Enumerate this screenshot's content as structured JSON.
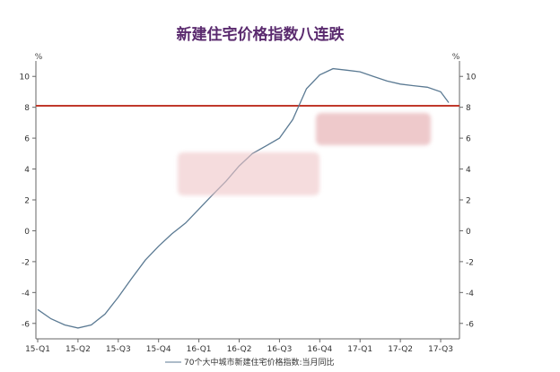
{
  "chart_data": {
    "type": "line",
    "title": "新建住宅价格指数八连跌",
    "unit_left": "%",
    "unit_right": "%",
    "ylim": [
      -7,
      11
    ],
    "yticks": [
      -6,
      -4,
      -2,
      0,
      2,
      4,
      6,
      8,
      10
    ],
    "xlim": [
      0,
      10.2
    ],
    "xticks": [
      {
        "x": 0,
        "label": "15-Q1"
      },
      {
        "x": 1,
        "label": "15-Q2"
      },
      {
        "x": 2,
        "label": "15-Q3"
      },
      {
        "x": 3,
        "label": "15-Q4"
      },
      {
        "x": 4,
        "label": "16-Q1"
      },
      {
        "x": 5,
        "label": "16-Q2"
      },
      {
        "x": 6,
        "label": "16-Q3"
      },
      {
        "x": 7,
        "label": "16-Q4"
      },
      {
        "x": 8,
        "label": "17-Q1"
      },
      {
        "x": 9,
        "label": "17-Q2"
      },
      {
        "x": 10,
        "label": "17-Q3"
      }
    ],
    "reference_line": {
      "y": 8.1,
      "color": "#c0392b"
    },
    "series": [
      {
        "name": "70个大中城市新建住宅价格指数:当月同比",
        "color": "#5b7a93",
        "x": [
          0,
          0.33,
          0.67,
          1.0,
          1.33,
          1.67,
          2.0,
          2.33,
          2.67,
          3.0,
          3.33,
          3.67,
          4.0,
          4.33,
          4.67,
          5.0,
          5.33,
          5.67,
          6.0,
          6.33,
          6.67,
          7.0,
          7.33,
          7.67,
          8.0,
          8.33,
          8.67,
          9.0,
          9.33,
          9.67,
          10.0,
          10.2
        ],
        "y": [
          -5.1,
          -5.7,
          -6.1,
          -6.3,
          -6.1,
          -5.4,
          -4.3,
          -3.1,
          -1.9,
          -1.0,
          -0.2,
          0.5,
          1.4,
          2.3,
          3.2,
          4.2,
          5.0,
          5.5,
          6.0,
          7.2,
          9.2,
          10.1,
          10.5,
          10.4,
          10.3,
          10.0,
          9.7,
          9.5,
          9.4,
          9.3,
          9.0,
          8.3
        ]
      }
    ],
    "legend_position": "bottom"
  }
}
